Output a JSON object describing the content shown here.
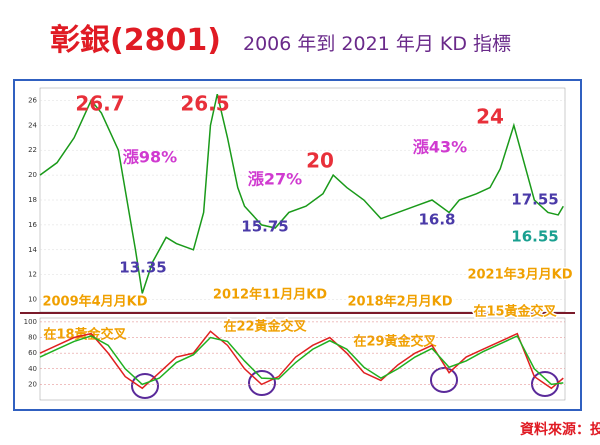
{
  "title": "彰銀(2801)",
  "subtitle": "2006 年到 2021 年月 KD 指標",
  "source": "資料來源：投資家日報",
  "chart_data": [
    {
      "type": "line",
      "x": [
        2006.0,
        2006.5,
        2007.0,
        2007.5,
        2007.8,
        2008.3,
        2008.8,
        2009.0,
        2009.3,
        2009.7,
        2010.0,
        2010.5,
        2010.8,
        2011.0,
        2011.2,
        2011.5,
        2011.8,
        2012.0,
        2012.5,
        2012.9,
        2013.3,
        2013.8,
        2014.3,
        2014.6,
        2015.0,
        2015.5,
        2016.0,
        2016.5,
        2017.0,
        2017.5,
        2018.0,
        2018.3,
        2018.8,
        2019.2,
        2019.5,
        2019.9,
        2020.2,
        2020.5,
        2020.9,
        2021.2,
        2021.35
      ],
      "series": [
        {
          "color": "#1a9a1a",
          "values": [
            20,
            21,
            23,
            26,
            25,
            22,
            14,
            10.5,
            13,
            15,
            14.5,
            14,
            17,
            24,
            26.5,
            23,
            19,
            17.5,
            16,
            15.75,
            17,
            17.5,
            18.5,
            20,
            19,
            18,
            16.5,
            17,
            17.5,
            18,
            17,
            18,
            18.5,
            19,
            20.5,
            24,
            21,
            18,
            17,
            16.8,
            17.5
          ]
        }
      ],
      "xlim": [
        2006,
        2021.4
      ],
      "ylim": [
        9,
        27
      ],
      "yticks": [
        10,
        12,
        14,
        16,
        18,
        20,
        22,
        24,
        26
      ],
      "annotations": [
        "26.7",
        "26.5",
        "13.35",
        "15.75",
        "20",
        "16.8",
        "24",
        "17.55",
        "16.55",
        "漲98%",
        "漲27%",
        "漲43%",
        "2009年4月月KD",
        "在18黃金交叉",
        "2012年11月月KD",
        "在22黃金交叉",
        "2018年2月月KD",
        "在29黃金交叉",
        "2021年3月月KD",
        "在15黃金交叉"
      ]
    },
    {
      "type": "line",
      "x": [
        2006.0,
        2006.5,
        2007.0,
        2007.5,
        2008.0,
        2008.5,
        2009.0,
        2009.5,
        2010.0,
        2010.5,
        2011.0,
        2011.5,
        2012.0,
        2012.5,
        2013.0,
        2013.5,
        2014.0,
        2014.5,
        2015.0,
        2015.5,
        2016.0,
        2016.5,
        2017.0,
        2017.5,
        2018.0,
        2018.5,
        2019.0,
        2019.5,
        2020.0,
        2020.5,
        2021.0,
        2021.35
      ],
      "series": [
        {
          "color": "#e02020",
          "values": [
            60,
            70,
            80,
            85,
            60,
            30,
            15,
            35,
            55,
            60,
            88,
            70,
            40,
            20,
            30,
            55,
            70,
            80,
            60,
            35,
            25,
            45,
            60,
            70,
            35,
            55,
            65,
            75,
            85,
            30,
            15,
            28
          ]
        },
        {
          "color": "#20b020",
          "values": [
            55,
            65,
            75,
            82,
            70,
            40,
            20,
            28,
            48,
            58,
            80,
            75,
            50,
            28,
            27,
            48,
            65,
            76,
            65,
            42,
            28,
            40,
            55,
            66,
            42,
            50,
            62,
            72,
            82,
            40,
            20,
            22
          ]
        }
      ],
      "xlim": [
        2006,
        2021.4
      ],
      "ylim": [
        0,
        105
      ],
      "yticks": [
        20,
        40,
        60,
        80,
        100
      ]
    }
  ]
}
